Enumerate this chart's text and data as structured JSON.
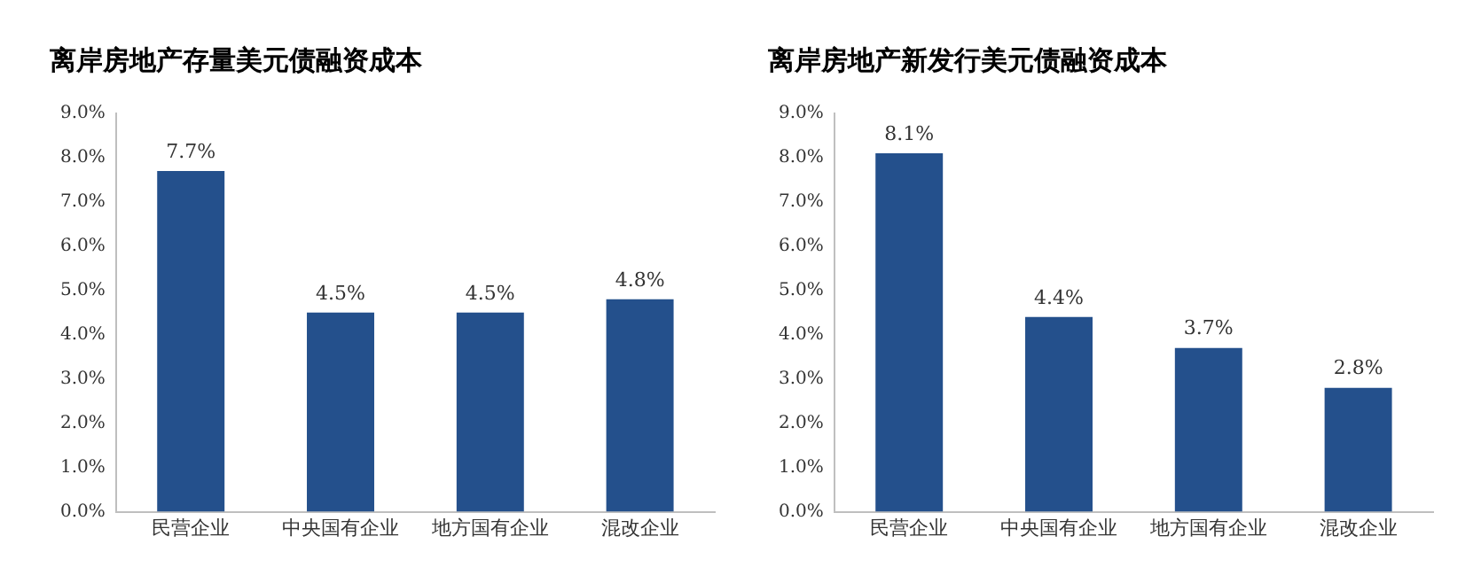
{
  "chart_data": [
    {
      "type": "bar",
      "title": "离岸房地产存量美元债融资成本",
      "categories": [
        "民营企业",
        "中央国有企业",
        "地方国有企业",
        "混改企业"
      ],
      "values": [
        7.7,
        4.5,
        4.5,
        4.8
      ],
      "color": "#24508c",
      "value_labels": [
        "7.7%",
        "4.5%",
        "4.5%",
        "4.8%"
      ],
      "ylim": [
        0,
        9
      ],
      "yticks": [
        {
          "value": 0,
          "label": "0.0%"
        },
        {
          "value": 1,
          "label": "1.0%"
        },
        {
          "value": 2,
          "label": "2.0%"
        },
        {
          "value": 3,
          "label": "3.0%"
        },
        {
          "value": 4,
          "label": "4.0%"
        },
        {
          "value": 5,
          "label": "5.0%"
        },
        {
          "value": 6,
          "label": "6.0%"
        },
        {
          "value": 7,
          "label": "7.0%"
        },
        {
          "value": 8,
          "label": "8.0%"
        },
        {
          "value": 9,
          "label": "9.0%"
        }
      ]
    },
    {
      "type": "bar",
      "title": "离岸房地产新发行美元债融资成本",
      "categories": [
        "民营企业",
        "中央国有企业",
        "地方国有企业",
        "混改企业"
      ],
      "values": [
        8.1,
        4.4,
        3.7,
        2.8
      ],
      "color": "#24508c",
      "value_labels": [
        "8.1%",
        "4.4%",
        "3.7%",
        "2.8%"
      ],
      "ylim": [
        0,
        9
      ],
      "yticks": [
        {
          "value": 0,
          "label": "0.0%"
        },
        {
          "value": 1,
          "label": "1.0%"
        },
        {
          "value": 2,
          "label": "2.0%"
        },
        {
          "value": 3,
          "label": "3.0%"
        },
        {
          "value": 4,
          "label": "4.0%"
        },
        {
          "value": 5,
          "label": "5.0%"
        },
        {
          "value": 6,
          "label": "6.0%"
        },
        {
          "value": 7,
          "label": "7.0%"
        },
        {
          "value": 8,
          "label": "8.0%"
        },
        {
          "value": 9,
          "label": "9.0%"
        }
      ]
    }
  ]
}
